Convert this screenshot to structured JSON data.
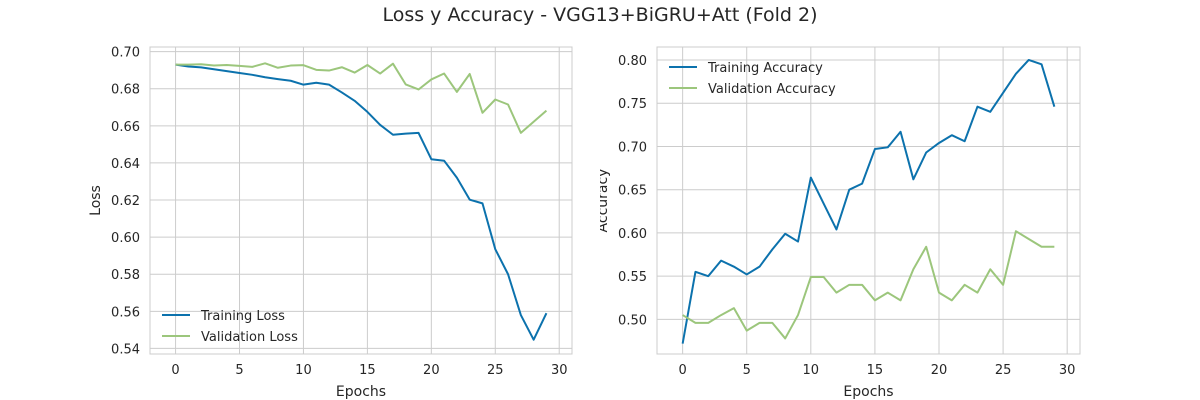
{
  "figure_title": "Loss y Accuracy - VGG13+BiGRU+Att (Fold 2)",
  "colors": {
    "training": "#0c72ad",
    "validation": "#9cc67c",
    "grid": "#cccccc",
    "spine": "#cccccc"
  },
  "chart_data": [
    {
      "type": "line",
      "xlabel": "Epochs",
      "ylabel": "Loss",
      "xlim": [
        -2,
        31
      ],
      "ylim": [
        0.537,
        0.7025
      ],
      "xticks": [
        0,
        5,
        10,
        15,
        20,
        25,
        30
      ],
      "yticks": [
        0.54,
        0.56,
        0.58,
        0.6,
        0.62,
        0.64,
        0.66,
        0.68,
        0.7
      ],
      "ytick_labels": [
        "0.54",
        "0.56",
        "0.58",
        "0.60",
        "0.62",
        "0.64",
        "0.66",
        "0.68",
        "0.70"
      ],
      "grid": true,
      "legend_position": "lower-left",
      "x": [
        0,
        1,
        2,
        3,
        4,
        5,
        6,
        7,
        8,
        9,
        10,
        11,
        12,
        13,
        14,
        15,
        16,
        17,
        18,
        19,
        20,
        21,
        22,
        23,
        24,
        25,
        26,
        27,
        28,
        29
      ],
      "series": [
        {
          "name": "Training Loss",
          "color_key": "training",
          "values": [
            0.693,
            0.692,
            0.6915,
            0.6905,
            0.6895,
            0.6885,
            0.6875,
            0.6862,
            0.6852,
            0.6843,
            0.6822,
            0.6832,
            0.6822,
            0.678,
            0.6735,
            0.6675,
            0.6605,
            0.6552,
            0.6558,
            0.6562,
            0.642,
            0.6412,
            0.632,
            0.6202,
            0.6182,
            0.5935,
            0.58,
            0.558,
            0.5447,
            0.559
          ]
        },
        {
          "name": "Validation Loss",
          "color_key": "validation",
          "values": [
            0.693,
            0.693,
            0.6932,
            0.6925,
            0.6928,
            0.6923,
            0.6918,
            0.6937,
            0.6913,
            0.6925,
            0.6927,
            0.6902,
            0.6898,
            0.6916,
            0.6887,
            0.6928,
            0.6882,
            0.6935,
            0.6823,
            0.6796,
            0.685,
            0.6882,
            0.6783,
            0.688,
            0.667,
            0.6742,
            0.6715,
            0.6562,
            0.6622,
            0.6682
          ]
        }
      ]
    },
    {
      "type": "line",
      "xlabel": "Epochs",
      "ylabel": "Accuracy",
      "xlim": [
        -2,
        31
      ],
      "ylim": [
        0.46,
        0.815
      ],
      "xticks": [
        0,
        5,
        10,
        15,
        20,
        25,
        30
      ],
      "yticks": [
        0.5,
        0.55,
        0.6,
        0.65,
        0.7,
        0.75,
        0.8
      ],
      "ytick_labels": [
        "0.50",
        "0.55",
        "0.60",
        "0.65",
        "0.70",
        "0.75",
        "0.80"
      ],
      "grid": true,
      "legend_position": "upper-left",
      "x": [
        0,
        1,
        2,
        3,
        4,
        5,
        6,
        7,
        8,
        9,
        10,
        11,
        12,
        13,
        14,
        15,
        16,
        17,
        18,
        19,
        20,
        21,
        22,
        23,
        24,
        25,
        26,
        27,
        28,
        29
      ],
      "series": [
        {
          "name": "Training Accuracy",
          "color_key": "training",
          "values": [
            0.472,
            0.555,
            0.55,
            0.568,
            0.561,
            0.552,
            0.561,
            0.581,
            0.599,
            0.59,
            0.664,
            0.634,
            0.604,
            0.65,
            0.657,
            0.697,
            0.699,
            0.717,
            0.662,
            0.693,
            0.704,
            0.713,
            0.706,
            0.746,
            0.74,
            0.762,
            0.784,
            0.8,
            0.795,
            0.746
          ]
        },
        {
          "name": "Validation Accuracy",
          "color_key": "validation",
          "values": [
            0.505,
            0.496,
            0.496,
            0.505,
            0.513,
            0.487,
            0.496,
            0.496,
            0.478,
            0.505,
            0.549,
            0.549,
            0.531,
            0.54,
            0.54,
            0.522,
            0.531,
            0.522,
            0.558,
            0.584,
            0.531,
            0.522,
            0.54,
            0.531,
            0.558,
            0.54,
            0.602,
            0.593,
            0.584,
            0.584
          ]
        }
      ]
    }
  ]
}
